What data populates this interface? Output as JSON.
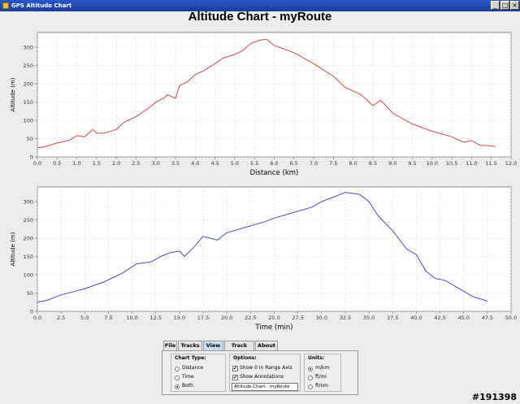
{
  "window": {
    "title": "GPS Altitude Chart",
    "controls": [
      "_",
      "□",
      "×"
    ]
  },
  "page_title": "Altitude Chart - myRoute",
  "chart_data": [
    {
      "type": "line",
      "xlabel": "Distance (km)",
      "ylabel": "Altitude (m)",
      "xlim": [
        0,
        12
      ],
      "ylim": [
        0,
        340
      ],
      "xticks": [
        0.0,
        0.5,
        1.0,
        1.5,
        2.0,
        2.5,
        3.0,
        3.5,
        4.0,
        4.5,
        5.0,
        5.5,
        6.0,
        6.5,
        7.0,
        7.5,
        8.0,
        8.5,
        9.0,
        9.5,
        10.0,
        10.5,
        11.0,
        11.5,
        12.0
      ],
      "yticks": [
        0,
        50,
        100,
        150,
        200,
        250,
        300
      ],
      "grid": true,
      "color": "#d04a4a",
      "x": [
        0.0,
        0.2,
        0.5,
        0.8,
        1.0,
        1.2,
        1.4,
        1.5,
        1.7,
        2.0,
        2.2,
        2.5,
        2.7,
        2.9,
        3.0,
        3.2,
        3.3,
        3.5,
        3.6,
        3.8,
        4.0,
        4.2,
        4.5,
        4.7,
        5.0,
        5.2,
        5.4,
        5.6,
        5.8,
        6.0,
        6.5,
        7.0,
        7.5,
        7.8,
        8.0,
        8.2,
        8.5,
        8.7,
        9.0,
        9.5,
        10.0,
        10.5,
        10.8,
        11.0,
        11.2,
        11.5,
        11.6
      ],
      "y": [
        25,
        28,
        38,
        45,
        58,
        55,
        75,
        65,
        65,
        75,
        95,
        110,
        125,
        140,
        150,
        160,
        170,
        160,
        195,
        205,
        225,
        235,
        255,
        270,
        280,
        290,
        310,
        318,
        322,
        305,
        285,
        255,
        220,
        190,
        180,
        170,
        140,
        155,
        120,
        90,
        70,
        55,
        40,
        45,
        32,
        30,
        28
      ]
    },
    {
      "type": "line",
      "xlabel": "Time (min)",
      "ylabel": "Altitude (m)",
      "xlim": [
        0,
        50
      ],
      "ylim": [
        0,
        340
      ],
      "xticks": [
        0.0,
        2.5,
        5.0,
        7.5,
        10.0,
        12.5,
        15.0,
        17.5,
        20.0,
        22.5,
        25.0,
        27.5,
        30.0,
        32.5,
        35.0,
        37.5,
        40.0,
        42.5,
        45.0,
        47.5,
        50.0
      ],
      "yticks": [
        0,
        50,
        100,
        150,
        200,
        250,
        300
      ],
      "grid": true,
      "color": "#4a4ac8",
      "x": [
        0.0,
        1.0,
        2.5,
        4.0,
        5.0,
        7.0,
        9.0,
        10.5,
        12.0,
        13.0,
        14.0,
        15.0,
        15.5,
        16.5,
        17.5,
        19.0,
        20.0,
        22.0,
        24.0,
        25.0,
        27.0,
        29.0,
        30.0,
        31.5,
        32.5,
        34.0,
        35.0,
        36.0,
        37.5,
        39.0,
        40.0,
        41.0,
        42.0,
        43.0,
        44.0,
        45.0,
        46.0,
        47.5
      ],
      "y": [
        25,
        30,
        45,
        55,
        62,
        80,
        105,
        130,
        135,
        150,
        160,
        165,
        150,
        175,
        205,
        195,
        215,
        230,
        245,
        255,
        270,
        285,
        300,
        315,
        325,
        320,
        300,
        260,
        220,
        170,
        155,
        110,
        90,
        85,
        70,
        55,
        40,
        28
      ]
    }
  ],
  "tabs": [
    {
      "label": "File",
      "active": false
    },
    {
      "label": "Tracks",
      "active": false
    },
    {
      "label": "View",
      "active": true
    },
    {
      "label": "Track Info",
      "active": false
    },
    {
      "label": "About",
      "active": false
    }
  ],
  "panel": {
    "chart_type": {
      "title": "Chart Type:",
      "options": [
        {
          "label": "Distance",
          "selected": false
        },
        {
          "label": "Time",
          "selected": false
        },
        {
          "label": "Both",
          "selected": true
        }
      ]
    },
    "options": {
      "title": "Options:",
      "checks": [
        {
          "label": "Show 0 in Range Axis",
          "checked": true
        },
        {
          "label": "Show Annotations",
          "checked": true
        }
      ],
      "title_field_value": "Altitude Chart - myRoute"
    },
    "units": {
      "title": "Units:",
      "options": [
        {
          "label": "m/km",
          "selected": true
        },
        {
          "label": "ft/mi",
          "selected": false
        },
        {
          "label": "ft/nm",
          "selected": false
        }
      ]
    }
  },
  "watermark": "#191398"
}
